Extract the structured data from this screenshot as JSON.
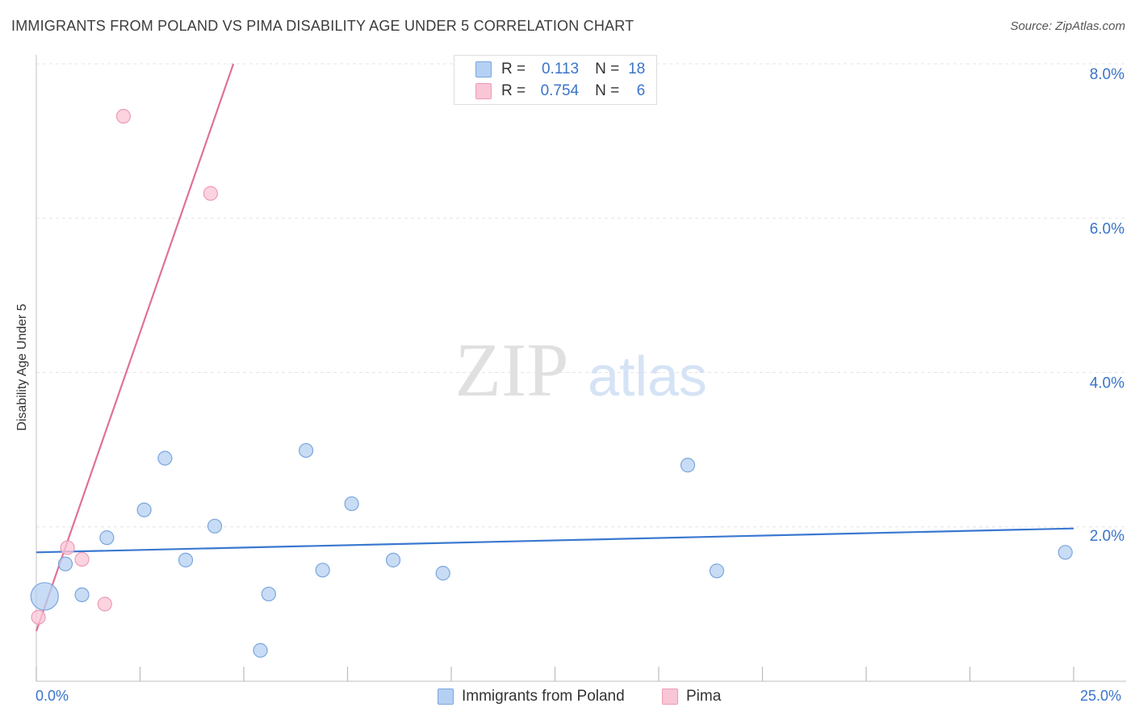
{
  "title": "IMMIGRANTS FROM POLAND VS PIMA DISABILITY AGE UNDER 5 CORRELATION CHART",
  "source": "Source: ZipAtlas.com",
  "watermark": {
    "zip": "ZIP",
    "atlas": "atlas"
  },
  "legend_top": {
    "rows": [
      {
        "r_label": "R =",
        "r_value": "0.113",
        "n_label": "N =",
        "n_value": "18"
      },
      {
        "r_label": "R =",
        "r_value": "0.754",
        "n_label": "N =",
        "n_value": "6"
      }
    ]
  },
  "legend_bottom": {
    "items": [
      {
        "label": "Immigrants from Poland"
      },
      {
        "label": "Pima"
      }
    ]
  },
  "colors": {
    "blue_fill": "#b5d0f2",
    "blue_stroke": "#7aa6de",
    "blue_line": "#3a78d0",
    "pink_fill": "#f9c6d6",
    "pink_stroke": "#ee9ab5",
    "pink_line": "#e0709a",
    "tick_label": "#3a74c9",
    "grid": "#e4e4e4"
  },
  "chart_data": {
    "type": "scatter",
    "title": "IMMIGRANTS FROM POLAND VS PIMA DISABILITY AGE UNDER 5 CORRELATION CHART",
    "xlabel": "",
    "ylabel": "Disability Age Under 5",
    "xlim": [
      0,
      25
    ],
    "ylim": [
      0,
      8
    ],
    "x_tick_labels": [
      "0.0%",
      "25.0%"
    ],
    "y_ticks": [
      {
        "value": 2,
        "label": "2.0%"
      },
      {
        "value": 4,
        "label": "4.0%"
      },
      {
        "value": 6,
        "label": "6.0%"
      },
      {
        "value": 8,
        "label": "8.0%"
      }
    ],
    "grid": true,
    "series": [
      {
        "name": "Immigrants from Poland",
        "r": 0.113,
        "n": 18,
        "points": [
          {
            "x": 0.2,
            "y": 1.1,
            "size": "large"
          },
          {
            "x": 0.7,
            "y": 1.52
          },
          {
            "x": 1.1,
            "y": 1.12
          },
          {
            "x": 1.7,
            "y": 1.86
          },
          {
            "x": 2.6,
            "y": 2.22
          },
          {
            "x": 3.1,
            "y": 2.89
          },
          {
            "x": 3.6,
            "y": 1.57
          },
          {
            "x": 4.3,
            "y": 2.01
          },
          {
            "x": 5.4,
            "y": 0.4
          },
          {
            "x": 5.6,
            "y": 1.13
          },
          {
            "x": 6.5,
            "y": 2.99
          },
          {
            "x": 6.9,
            "y": 1.44
          },
          {
            "x": 7.6,
            "y": 2.3
          },
          {
            "x": 8.6,
            "y": 1.57
          },
          {
            "x": 9.8,
            "y": 1.4
          },
          {
            "x": 15.7,
            "y": 2.8
          },
          {
            "x": 16.4,
            "y": 1.43
          },
          {
            "x": 24.8,
            "y": 1.67
          }
        ],
        "trend": {
          "x0": 0,
          "y0": 1.67,
          "x1": 25,
          "y1": 1.98
        }
      },
      {
        "name": "Pima",
        "r": 0.754,
        "n": 6,
        "points": [
          {
            "x": 0.05,
            "y": 0.83
          },
          {
            "x": 0.75,
            "y": 1.73
          },
          {
            "x": 1.1,
            "y": 1.58
          },
          {
            "x": 1.65,
            "y": 1.0
          },
          {
            "x": 2.1,
            "y": 7.32
          },
          {
            "x": 4.2,
            "y": 6.32
          }
        ],
        "trend": {
          "x0": 0,
          "y0": 0.65,
          "x1": 4.75,
          "y1": 8.0
        }
      }
    ]
  }
}
